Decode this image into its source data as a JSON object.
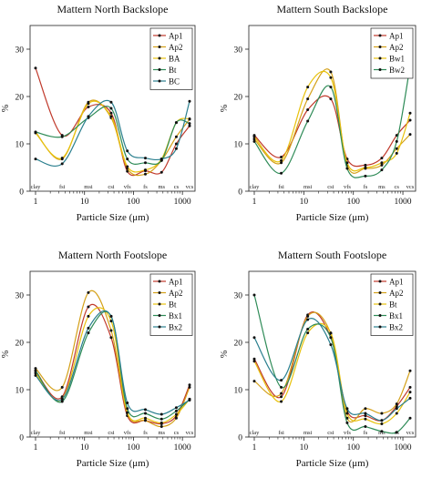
{
  "figure": {
    "chart_data": [
      {
        "type": "line",
        "title": "Mattern North Backslope",
        "xlabel": "Particle Size (μm)",
        "ylabel": "%",
        "x_scale": "log",
        "xlim": [
          1,
          1400
        ],
        "ylim": [
          0,
          35
        ],
        "y_ticks": [
          0,
          10,
          20,
          30
        ],
        "x_ticks": [
          {
            "value": 1,
            "label": "1"
          },
          {
            "value": 10,
            "label": "10"
          },
          {
            "value": 100,
            "label": "100"
          },
          {
            "value": 1000,
            "label": "1000"
          }
        ],
        "size_class_labels": [
          "clay",
          "fsi",
          "msi",
          "csi",
          "vfs",
          "fs",
          "ms",
          "cs",
          "vcs"
        ],
        "x": [
          1,
          3.5,
          12,
          35,
          75,
          175,
          375,
          750,
          1400
        ],
        "legend_position": "top-right",
        "series": [
          {
            "name": "Ap1",
            "color": "#c0392b",
            "values": [
              26,
              11.8,
              17.8,
              16.5,
              4.2,
              4.3,
              4,
              10,
              13.8
            ]
          },
          {
            "name": "Ap2",
            "color": "#d4a017",
            "values": [
              12.5,
              6.8,
              18.8,
              15.5,
              4.8,
              3.6,
              6.5,
              11.5,
              15.2
            ]
          },
          {
            "name": "BA",
            "color": "#e8c20c",
            "values": [
              12.3,
              7,
              18.5,
              15.8,
              5.2,
              4.5,
              6.8,
              14.5,
              15.3
            ]
          },
          {
            "name": "Bt",
            "color": "#2e8b57",
            "values": [
              12.5,
              11.5,
              15.5,
              17.5,
              6.8,
              6,
              6.5,
              14.5,
              14.3
            ]
          },
          {
            "name": "BC",
            "color": "#2a7f8e",
            "values": [
              6.8,
              5.8,
              15.8,
              18.8,
              8.5,
              7,
              6.8,
              9,
              19
            ]
          }
        ]
      },
      {
        "type": "line",
        "title": "Mattern South Backslope",
        "xlabel": "Particle Size (μm)",
        "ylabel": "%",
        "x_scale": "log",
        "xlim": [
          1,
          1400
        ],
        "ylim": [
          0,
          35
        ],
        "y_ticks": [
          0,
          10,
          20,
          30
        ],
        "x_ticks": [
          {
            "value": 1,
            "label": "1"
          },
          {
            "value": 10,
            "label": "10"
          },
          {
            "value": 100,
            "label": "100"
          },
          {
            "value": 1000,
            "label": "1000"
          }
        ],
        "size_class_labels": [
          "clay",
          "fsi",
          "msi",
          "csi",
          "vfs",
          "fs",
          "ms",
          "cs",
          "vcs"
        ],
        "x": [
          1,
          3.5,
          12,
          35,
          75,
          175,
          375,
          750,
          1400
        ],
        "legend_position": "top-right",
        "series": [
          {
            "name": "Ap1",
            "color": "#c0392b",
            "values": [
              11.8,
              7.2,
              17.2,
              19.5,
              6.8,
              5.5,
              7,
              11.8,
              15
            ]
          },
          {
            "name": "Ap2",
            "color": "#d4a017",
            "values": [
              11,
              6,
              19.5,
              25.2,
              5.5,
              4.8,
              5.5,
              9,
              12
            ]
          },
          {
            "name": "Bw1",
            "color": "#e8c20c",
            "values": [
              11.5,
              6.5,
              22,
              24,
              6,
              5,
              6,
              8,
              16.5
            ]
          },
          {
            "name": "Bw2",
            "color": "#2e8b57",
            "values": [
              10.5,
              3.8,
              14.8,
              22,
              4.8,
              3.2,
              4.5,
              10.5,
              26.5
            ]
          }
        ]
      },
      {
        "type": "line",
        "title": "Mattern North Footslope",
        "xlabel": "Particle Size (μm)",
        "ylabel": "%",
        "x_scale": "log",
        "xlim": [
          1,
          1400
        ],
        "ylim": [
          0,
          35
        ],
        "y_ticks": [
          0,
          10,
          20,
          30
        ],
        "x_ticks": [
          {
            "value": 1,
            "label": "1"
          },
          {
            "value": 10,
            "label": "10"
          },
          {
            "value": 100,
            "label": "100"
          },
          {
            "value": 1000,
            "label": "1000"
          }
        ],
        "size_class_labels": [
          "clay",
          "fsi",
          "msi",
          "csi",
          "vfs",
          "fs",
          "ms",
          "cs",
          "vcs"
        ],
        "x": [
          1,
          3.5,
          12,
          35,
          75,
          175,
          375,
          750,
          1400
        ],
        "legend_position": "top-right",
        "series": [
          {
            "name": "Ap1",
            "color": "#c0392b",
            "values": [
              14,
              8.5,
              27.5,
              21,
              4.5,
              3.5,
              2.8,
              4.5,
              11
            ]
          },
          {
            "name": "Ap2",
            "color": "#d4a017",
            "values": [
              14.5,
              10.5,
              30.5,
              22.5,
              5,
              3.5,
              2.2,
              4,
              10.5
            ]
          },
          {
            "name": "Bt",
            "color": "#e8c20c",
            "values": [
              13.5,
              8,
              25.5,
              24.5,
              5.2,
              4,
              3,
              4.8,
              8
            ]
          },
          {
            "name": "Bx1",
            "color": "#2e8b57",
            "values": [
              14,
              7.5,
              22,
              25.5,
              6,
              5,
              3.8,
              5.5,
              8
            ]
          },
          {
            "name": "Bx2",
            "color": "#2a7f8e",
            "values": [
              13,
              8,
              23,
              25.5,
              7.2,
              5.8,
              4.8,
              6.2,
              7.8
            ]
          }
        ]
      },
      {
        "type": "line",
        "title": "Mattern South Footslope",
        "xlabel": "Particle Size (μm)",
        "ylabel": "%",
        "x_scale": "log",
        "xlim": [
          1,
          1400
        ],
        "ylim": [
          0,
          35
        ],
        "y_ticks": [
          0,
          10,
          20,
          30
        ],
        "x_ticks": [
          {
            "value": 1,
            "label": "1"
          },
          {
            "value": 10,
            "label": "10"
          },
          {
            "value": 100,
            "label": "100"
          },
          {
            "value": 1000,
            "label": "1000"
          }
        ],
        "size_class_labels": [
          "clay",
          "fsi",
          "msi",
          "csi",
          "vfs",
          "fs",
          "ms",
          "cs",
          "vcs"
        ],
        "x": [
          1,
          3.5,
          12,
          35,
          75,
          175,
          375,
          750,
          1400
        ],
        "legend_position": "top-right",
        "series": [
          {
            "name": "Ap1",
            "color": "#c0392b",
            "values": [
              16.5,
              8.5,
              25.8,
              21,
              5.5,
              4.5,
              3.5,
              6.5,
              10.5
            ]
          },
          {
            "name": "Ap2",
            "color": "#d4a017",
            "values": [
              11.8,
              9.2,
              25.5,
              21.8,
              4,
              6,
              5,
              7,
              14
            ]
          },
          {
            "name": "Bt",
            "color": "#e8c20c",
            "values": [
              16,
              7.5,
              22,
              22,
              5,
              3.8,
              2.8,
              5,
              9.5
            ]
          },
          {
            "name": "Bx1",
            "color": "#2e8b57",
            "values": [
              30,
              10.5,
              22.8,
              21,
              3,
              2.2,
              1.2,
              1,
              4
            ]
          },
          {
            "name": "Bx2",
            "color": "#2a7f8e",
            "values": [
              21,
              12,
              24.8,
              19.5,
              6,
              5,
              3.5,
              6,
              8.2
            ]
          }
        ]
      }
    ]
  }
}
